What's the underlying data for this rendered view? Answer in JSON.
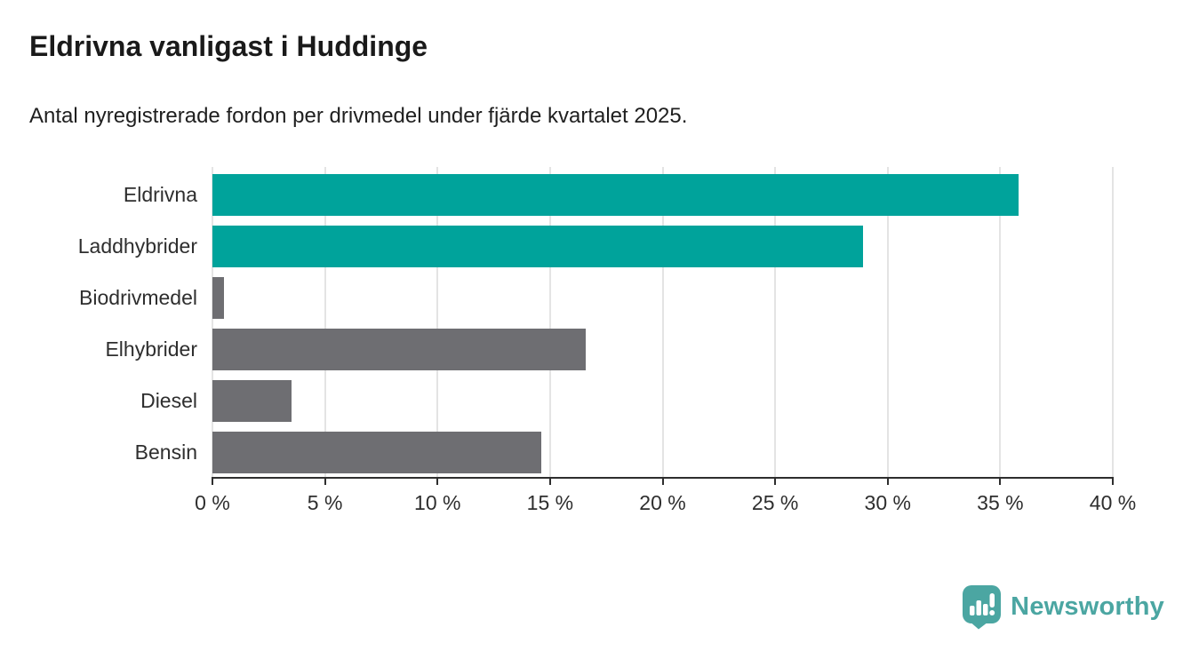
{
  "chart_data": {
    "type": "bar",
    "orientation": "horizontal",
    "title": "Eldrivna vanligast i Huddinge",
    "subtitle": "Antal nyregistrerade fordon per drivmedel under fjärde kvartalet 2025.",
    "categories": [
      "Eldrivna",
      "Laddhybrider",
      "Biodrivmedel",
      "Elhybrider",
      "Diesel",
      "Bensin"
    ],
    "values": [
      35.8,
      28.9,
      0.5,
      16.6,
      3.5,
      14.6
    ],
    "unit": "%",
    "bar_colors": [
      "#00a39b",
      "#00a39b",
      "#6e6e72",
      "#6e6e72",
      "#6e6e72",
      "#6e6e72"
    ],
    "colors": {
      "highlight": "#00a39b",
      "default": "#6e6e72"
    },
    "xlim": [
      0,
      40
    ],
    "x_ticks": [
      0,
      5,
      10,
      15,
      20,
      25,
      30,
      35,
      40
    ],
    "x_tick_labels": [
      "0 %",
      "5 %",
      "10 %",
      "15 %",
      "20 %",
      "25 %",
      "30 %",
      "35 %",
      "40 %"
    ],
    "xlabel": "",
    "ylabel": "",
    "grid": true,
    "legend": "none"
  },
  "branding": {
    "name": "Newsworthy",
    "color": "#4ba6a2",
    "icon": "newsworthy-pin-chart-icon"
  }
}
